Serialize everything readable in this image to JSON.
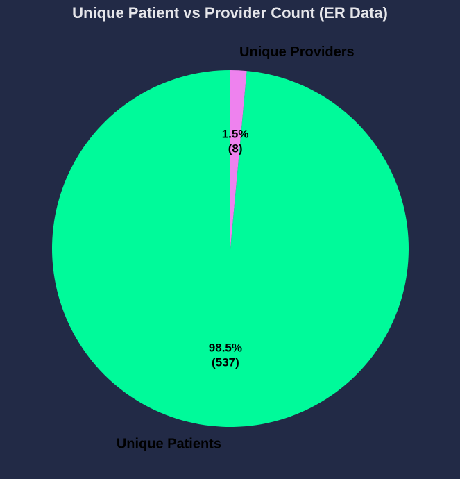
{
  "chart_data": {
    "type": "pie",
    "title": "Unique Patient vs Provider Count (ER Data)",
    "start_angle_deg": 90,
    "direction": "counterclockwise",
    "slices": [
      {
        "label": "Unique Patients",
        "value": 537,
        "percent_label": "98.5%",
        "count_label": "(537)",
        "color": "#00fa9a"
      },
      {
        "label": "Unique Providers",
        "value": 8,
        "percent_label": "1.5%",
        "count_label": "(8)",
        "color": "#ee82ee"
      }
    ],
    "background": "#222a46",
    "title_color": "#e6e6ea"
  }
}
